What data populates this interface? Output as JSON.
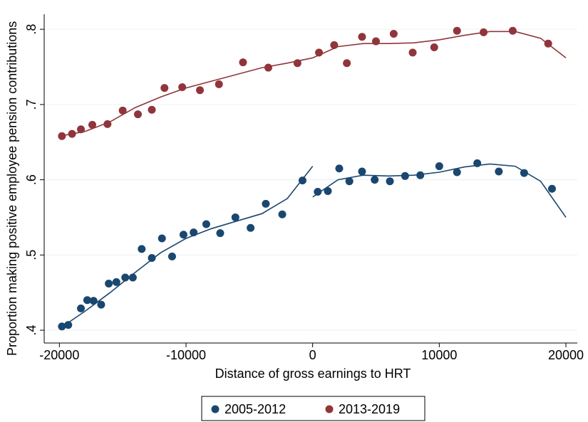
{
  "chart_data": {
    "type": "scatter",
    "x_label": "Distance of gross earnings to HRT",
    "y_label": "Proportion making positive employee pension contributions",
    "xlim": [
      -21200,
      20900
    ],
    "ylim": [
      0.383,
      0.82
    ],
    "xticks": [
      -20000,
      -10000,
      0,
      10000,
      20000
    ],
    "yticks": [
      {
        "value": 0.4,
        "label": ".4"
      },
      {
        "value": 0.5,
        "label": ".5"
      },
      {
        "value": 0.6,
        "label": ".6"
      },
      {
        "value": 0.7,
        "label": ".7"
      },
      {
        "value": 0.8,
        "label": ".8"
      }
    ],
    "grid": true,
    "legend": "bottom",
    "series": [
      {
        "name": "2005-2012",
        "color": "#1a476f",
        "x": [
          -19800,
          -19300,
          -18300,
          -17800,
          -17300,
          -16700,
          -16100,
          -15500,
          -14800,
          -14200,
          -13500,
          -12700,
          -11900,
          -11100,
          -10200,
          -9400,
          -8400,
          -7300,
          -6100,
          -4900,
          -3700,
          -2400,
          -800,
          400,
          1200,
          2100,
          2900,
          3900,
          4900,
          6100,
          7300,
          8500,
          10000,
          11400,
          13000,
          14700,
          16700,
          18900
        ],
        "values": [
          0.405,
          0.407,
          0.429,
          0.44,
          0.439,
          0.434,
          0.462,
          0.464,
          0.47,
          0.47,
          0.508,
          0.496,
          0.522,
          0.498,
          0.527,
          0.53,
          0.541,
          0.529,
          0.55,
          0.536,
          0.568,
          0.554,
          0.599,
          0.584,
          0.585,
          0.615,
          0.598,
          0.611,
          0.6,
          0.598,
          0.605,
          0.606,
          0.618,
          0.61,
          0.622,
          0.611,
          0.609,
          0.588
        ]
      },
      {
        "name": "2013-2019",
        "color": "#90353b",
        "x": [
          -19800,
          -19000,
          -18300,
          -17400,
          -16200,
          -15000,
          -13800,
          -12700,
          -11700,
          -10300,
          -8900,
          -7400,
          -5500,
          -3500,
          -1200,
          500,
          1700,
          2700,
          3900,
          5000,
          6400,
          7900,
          9600,
          11400,
          13500,
          15800,
          18600
        ],
        "values": [
          0.658,
          0.661,
          0.667,
          0.673,
          0.674,
          0.692,
          0.687,
          0.693,
          0.722,
          0.723,
          0.719,
          0.727,
          0.756,
          0.749,
          0.755,
          0.769,
          0.779,
          0.755,
          0.79,
          0.784,
          0.794,
          0.769,
          0.776,
          0.798,
          0.796,
          0.798,
          0.781
        ]
      }
    ],
    "fits": [
      {
        "color": "#1a476f",
        "x": [
          -20000,
          -18000,
          -16000,
          -14000,
          -12000,
          -10000,
          -8000,
          -6000,
          -4000,
          -2000,
          0,
          null,
          0,
          2000,
          4000,
          6000,
          8000,
          10000,
          12000,
          14000,
          16000,
          18000,
          20000
        ],
        "values": [
          0.402,
          0.425,
          0.45,
          0.477,
          0.503,
          0.522,
          0.535,
          0.545,
          0.555,
          0.575,
          0.618,
          null,
          0.577,
          0.6,
          0.606,
          0.605,
          0.606,
          0.61,
          0.617,
          0.621,
          0.618,
          0.598,
          0.55
        ]
      },
      {
        "color": "#90353b",
        "x": [
          -20000,
          -18000,
          -16000,
          -14000,
          -12000,
          -10000,
          -8000,
          -6000,
          -4000,
          -2000,
          0,
          2000,
          4000,
          6000,
          8000,
          10000,
          12000,
          14000,
          16000,
          18000,
          20000
        ],
        "values": [
          0.658,
          0.664,
          0.677,
          0.696,
          0.71,
          0.722,
          0.731,
          0.74,
          0.749,
          0.755,
          0.762,
          0.777,
          0.781,
          0.781,
          0.782,
          0.786,
          0.792,
          0.797,
          0.797,
          0.788,
          0.762
        ]
      }
    ]
  }
}
